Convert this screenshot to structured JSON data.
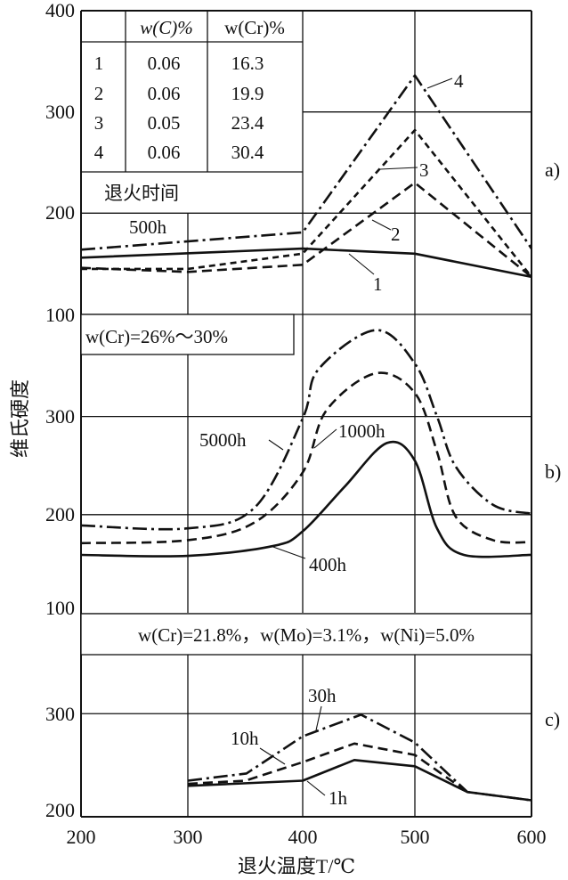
{
  "chart_data": [
    {
      "panel": "a)",
      "type": "line",
      "xlabel": "退火温度T/℃",
      "ylabel": "维氏硬度",
      "xlim": [
        200,
        600
      ],
      "ylim": [
        100,
        400
      ],
      "yticks": [
        "100",
        "200",
        "300",
        "400"
      ],
      "table": {
        "headers": [
          "",
          "w(C)%",
          "w(Cr)%"
        ],
        "rows": [
          [
            "1",
            "0.06",
            "16.3"
          ],
          [
            "2",
            "0.06",
            "19.9"
          ],
          [
            "3",
            "0.05",
            "23.4"
          ],
          [
            "4",
            "0.06",
            "30.4"
          ]
        ]
      },
      "annotation_title": "退火时间",
      "annotation_time": "500h",
      "series": [
        {
          "name": "1",
          "style": "solid",
          "x": [
            200,
            400,
            500,
            600
          ],
          "y": [
            156,
            165,
            160,
            137
          ]
        },
        {
          "name": "2",
          "style": "dashed",
          "x": [
            200,
            300,
            400,
            500,
            600
          ],
          "y": [
            146,
            142,
            149,
            230,
            137
          ]
        },
        {
          "name": "3",
          "style": "shortdash",
          "x": [
            200,
            300,
            400,
            500,
            600
          ],
          "y": [
            145,
            145,
            160,
            282,
            137
          ]
        },
        {
          "name": "4",
          "style": "dashdot",
          "x": [
            200,
            400,
            500,
            600
          ],
          "y": [
            164,
            181,
            336,
            165
          ]
        }
      ]
    },
    {
      "panel": "b)",
      "type": "line",
      "xlim": [
        200,
        600
      ],
      "ylim": [
        100,
        404
      ],
      "yticks": [
        "100",
        "200",
        "300"
      ],
      "condition": "w(Cr)=26%～30%",
      "series": [
        {
          "name": "5000h",
          "style": "dashdot",
          "x": [
            200,
            300,
            358,
            400,
            414,
            465,
            500,
            519,
            535,
            567,
            600
          ],
          "y": [
            189,
            186,
            207,
            298,
            348,
            388,
            354,
            300,
            249,
            210,
            201
          ]
        },
        {
          "name": "1000h",
          "style": "dashed",
          "x": [
            200,
            300,
            358,
            400,
            421,
            465,
            500,
            519,
            535,
            567,
            600
          ],
          "y": [
            171,
            174,
            192,
            243,
            306,
            344,
            324,
            264,
            198,
            174,
            172
          ]
        },
        {
          "name": "400h",
          "style": "solid",
          "x": [
            200,
            300,
            374,
            400,
            437,
            475,
            500,
            519,
            542,
            600
          ],
          "y": [
            159,
            158,
            168,
            183,
            228,
            273,
            255,
            186,
            159,
            159
          ]
        }
      ]
    },
    {
      "panel": "c)",
      "type": "line",
      "xlim": [
        200,
        600
      ],
      "ylim": [
        200,
        397
      ],
      "xticks": [
        "200",
        "300",
        "400",
        "500",
        "600"
      ],
      "yticks": [
        "200",
        "300"
      ],
      "condition": "w(Cr)=21.8%，w(Mo)=3.1%，w(Ni)=5.0%",
      "series": [
        {
          "name": "30h",
          "style": "dashdot",
          "x": [
            300,
            351,
            400,
            452,
            500,
            545,
            600
          ],
          "y": [
            235,
            242,
            278,
            299,
            272,
            224,
            216
          ]
        },
        {
          "name": "10h",
          "style": "dashed",
          "x": [
            300,
            350,
            400,
            446,
            500,
            545
          ],
          "y": [
            232,
            235,
            253,
            271,
            260,
            224
          ]
        },
        {
          "name": "1h",
          "style": "solid",
          "x": [
            300,
            400,
            446,
            500,
            545,
            600
          ],
          "y": [
            230,
            235,
            255,
            249,
            224,
            216
          ]
        }
      ]
    }
  ]
}
